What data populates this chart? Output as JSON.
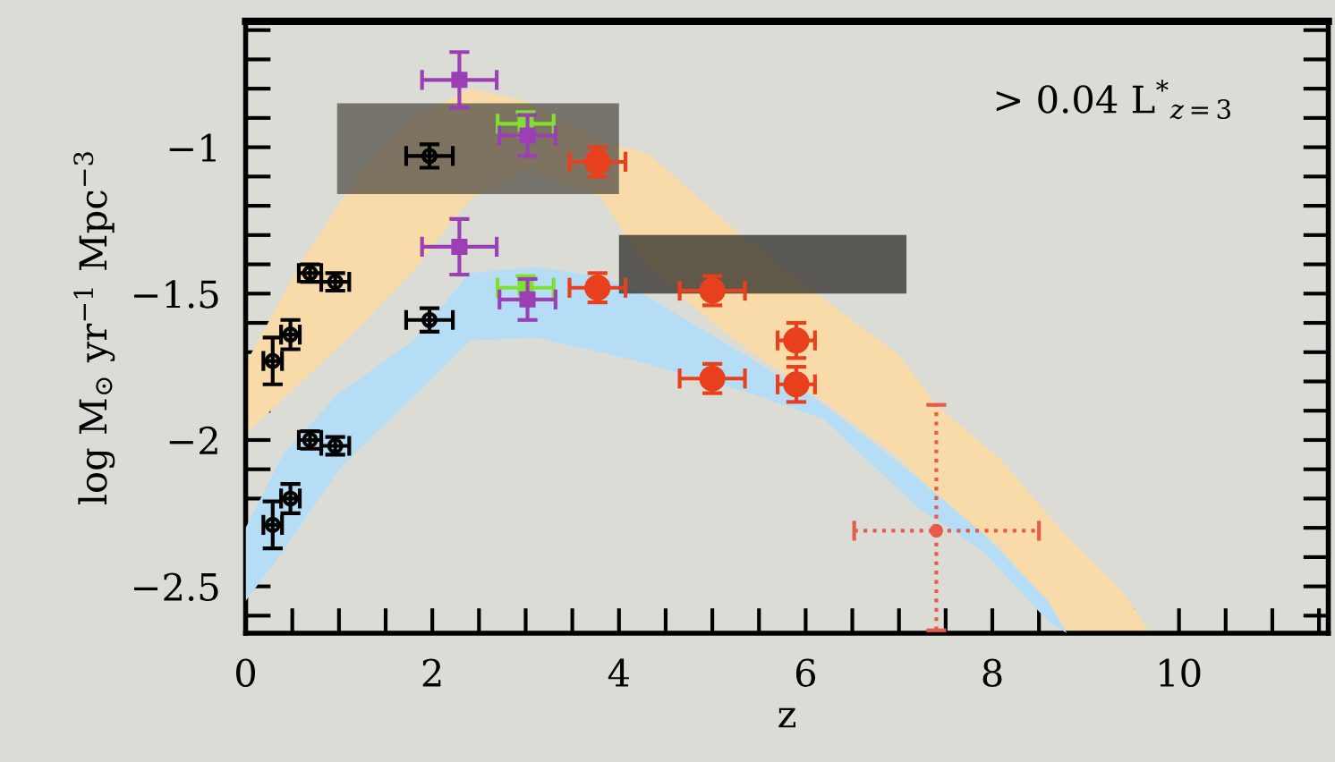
{
  "chart_data": {
    "type": "scatter",
    "xlabel": "z",
    "ylabel": "log M$_{⊙}$ yr$^{−1}$ Mpc$^{−3}$",
    "annotations": [
      "> 0.04 L$^{*}$$_{z=3}$"
    ],
    "xlim": [
      0,
      11.6
    ],
    "ylim": [
      -2.66,
      -0.57
    ],
    "xticks": [
      0,
      {
        "value": 0.5,
        "label": null
      },
      {
        "value": 1,
        "label": null
      },
      {
        "value": 1.5,
        "label": null
      },
      2,
      {
        "value": 2.5,
        "label": null
      },
      {
        "value": 3,
        "label": null
      },
      {
        "value": 3.5,
        "label": null
      },
      4,
      {
        "value": 4.5,
        "label": null
      },
      {
        "value": 5,
        "label": null
      },
      {
        "value": 5.5,
        "label": null
      },
      6,
      {
        "value": 6.5,
        "label": null
      },
      {
        "value": 7,
        "label": null
      },
      {
        "value": 7.5,
        "label": null
      },
      8,
      {
        "value": 8.5,
        "label": null
      },
      {
        "value": 9,
        "label": null
      },
      {
        "value": 9.5,
        "label": null
      },
      10,
      {
        "value": 10.5,
        "label": null
      },
      {
        "value": 11,
        "label": null
      },
      {
        "value": 11.5,
        "label": null
      }
    ],
    "yticks": [
      {
        "value": -0.6,
        "label": null
      },
      {
        "value": -0.7,
        "label": null
      },
      {
        "value": -0.8,
        "label": null
      },
      {
        "value": -0.9,
        "label": null
      },
      {
        "value": -1,
        "label": "−1"
      },
      {
        "value": -1.1,
        "label": null
      },
      {
        "value": -1.2,
        "label": null
      },
      {
        "value": -1.3,
        "label": null
      },
      {
        "value": -1.4,
        "label": null
      },
      {
        "value": -1.5,
        "label": "−1.5"
      },
      {
        "value": -1.6,
        "label": null
      },
      {
        "value": -1.7,
        "label": null
      },
      {
        "value": -1.8,
        "label": null
      },
      {
        "value": -1.9,
        "label": null
      },
      {
        "value": -2,
        "label": "−2"
      },
      {
        "value": -2.1,
        "label": null
      },
      {
        "value": -2.2,
        "label": null
      },
      {
        "value": -2.3,
        "label": null
      },
      {
        "value": -2.4,
        "label": null
      },
      {
        "value": -2.5,
        "label": "−2.5"
      },
      {
        "value": -2.6,
        "label": null
      }
    ],
    "grid": false,
    "series": [
      {
        "type": "area",
        "color": "#f8dba8",
        "x": [
          0,
          0.6,
          1.2,
          1.8,
          2.4,
          3.0,
          3.8,
          4.3,
          5.2,
          6.2,
          7.0,
          7.4,
          8.1,
          8.8,
          9.4,
          9.7
        ],
        "values": [
          null,
          null,
          null,
          null,
          null,
          null,
          null,
          null,
          null,
          null,
          null,
          null,
          null,
          null,
          null,
          null
        ],
        "upper": [
          -1.74,
          -1.39,
          -1.1,
          -0.9,
          -0.8,
          -0.84,
          -0.98,
          -1.02,
          -1.27,
          -1.52,
          -1.71,
          -1.88,
          -2.07,
          -2.33,
          -2.52,
          -2.66
        ],
        "lower": [
          -1.98,
          -1.8,
          -1.62,
          -1.42,
          -1.18,
          -1.08,
          -1.17,
          -1.41,
          -1.65,
          -1.87,
          -2.06,
          -2.19,
          -2.37,
          -2.66,
          -2.66,
          -2.66
        ]
      },
      {
        "type": "area",
        "color": "#b5ddf5",
        "x": [
          0,
          0.4,
          1.0,
          1.8,
          2.4,
          3.1,
          3.8,
          4.3,
          5.4,
          6.2,
          7.2,
          7.9,
          8.6,
          8.8
        ],
        "values": [
          null,
          null,
          null,
          null,
          null,
          null,
          null,
          null,
          null,
          null,
          null,
          null,
          null,
          null
        ],
        "upper": [
          -2.3,
          -2.05,
          -1.84,
          -1.66,
          -1.43,
          -1.41,
          -1.44,
          -1.51,
          -1.72,
          -1.88,
          -2.13,
          -2.32,
          -2.55,
          -2.66
        ],
        "lower": [
          -2.55,
          -2.38,
          -2.1,
          -1.85,
          -1.66,
          -1.65,
          -1.7,
          -1.74,
          -1.84,
          -1.93,
          -2.23,
          -2.38,
          -2.62,
          -2.66
        ]
      },
      {
        "type": "area",
        "color": "#55504a",
        "x": [
          0.98,
          4.0
        ],
        "values": [
          null,
          null
        ],
        "upper": [
          -0.85,
          -0.85
        ],
        "lower": [
          -1.16,
          -1.16
        ]
      },
      {
        "type": "area",
        "color": "#2e2c28",
        "x": [
          4.0,
          7.08
        ],
        "values": [
          null,
          null
        ],
        "upper": [
          -1.3,
          -1.3
        ],
        "lower": [
          -1.5,
          -1.5
        ]
      },
      {
        "color": "#000000",
        "marker": "circle",
        "x": [
          0.29,
          0.48,
          0.69,
          0.96,
          1.97
        ],
        "values": [
          -1.73,
          -1.64,
          -1.43,
          -1.46,
          -1.03
        ],
        "errors": [
          0.08,
          0.05,
          0.03,
          0.03,
          0.04
        ],
        "xerrors": [
          0.1,
          0.1,
          0.12,
          0.15,
          0.25
        ]
      },
      {
        "color": "#000000",
        "marker": "circle",
        "x": [
          0.29,
          0.48,
          0.69,
          0.96,
          1.97
        ],
        "values": [
          -2.29,
          -2.2,
          -2.0,
          -2.02,
          -1.59
        ],
        "errors": [
          0.08,
          0.05,
          0.03,
          0.03,
          0.04
        ],
        "xerrors": [
          0.1,
          0.1,
          0.12,
          0.15,
          0.25
        ]
      },
      {
        "color": "#7fe030",
        "marker": "square",
        "x": [
          3.0,
          3.0
        ],
        "values": [
          -0.92,
          -1.48
        ],
        "errors": [
          0.04,
          0.04
        ],
        "xerrors": [
          0.3,
          0.3
        ]
      },
      {
        "color": "#9b3fb5",
        "marker": "square",
        "x": [
          2.29,
          2.29,
          3.02,
          3.02
        ],
        "values": [
          -0.77,
          -1.34,
          -0.96,
          -1.52
        ],
        "errors": [
          0.095,
          0.095,
          0.07,
          0.07
        ],
        "xerrors": [
          0.4,
          0.4,
          0.3,
          0.3
        ]
      },
      {
        "color": "#e8401c",
        "marker": "circle",
        "x": [
          3.77,
          3.77,
          5.0,
          5.0,
          5.9,
          5.9
        ],
        "values": [
          -1.05,
          -1.48,
          -1.49,
          -1.79,
          -1.66,
          -1.81
        ],
        "errors": [
          0.05,
          0.05,
          0.05,
          0.05,
          0.06,
          0.06
        ],
        "xerrors": [
          0.3,
          0.3,
          0.35,
          0.35,
          0.2,
          0.2
        ]
      },
      {
        "color": "#e85a4a",
        "marker": "circle",
        "line_style": "dotted",
        "x": [
          7.4
        ],
        "values": [
          -2.31
        ],
        "errors": [
          [
            -2.65,
            -1.88
          ]
        ],
        "xerrors": [
          [
            6.52,
            8.5
          ]
        ]
      }
    ]
  }
}
